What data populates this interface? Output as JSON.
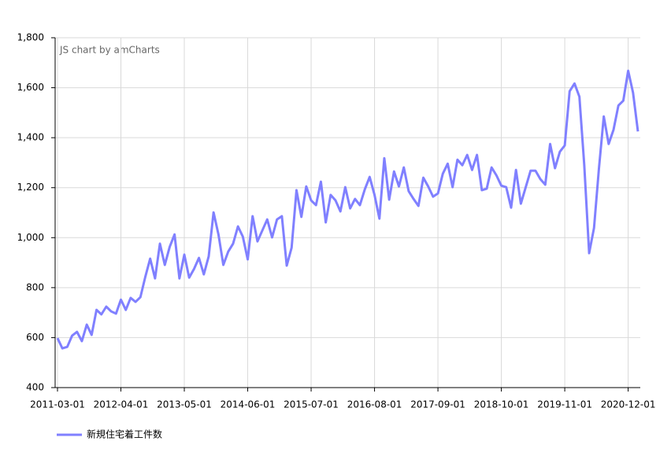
{
  "chart_data": {
    "type": "line",
    "credit": "JS chart by amCharts",
    "x": [
      "2011-03-01",
      "2011-04-01",
      "2011-05-01",
      "2011-06-01",
      "2011-07-01",
      "2011-08-01",
      "2011-09-01",
      "2011-10-01",
      "2011-11-01",
      "2011-12-01",
      "2012-01-01",
      "2012-02-01",
      "2012-03-01",
      "2012-04-01",
      "2012-05-01",
      "2012-06-01",
      "2012-07-01",
      "2012-08-01",
      "2012-09-01",
      "2012-10-01",
      "2012-11-01",
      "2012-12-01",
      "2013-01-01",
      "2013-02-01",
      "2013-03-01",
      "2013-04-01",
      "2013-05-01",
      "2013-06-01",
      "2013-07-01",
      "2013-08-01",
      "2013-09-01",
      "2013-10-01",
      "2013-11-01",
      "2013-12-01",
      "2014-01-01",
      "2014-02-01",
      "2014-03-01",
      "2014-04-01",
      "2014-05-01",
      "2014-06-01",
      "2014-07-01",
      "2014-08-01",
      "2014-09-01",
      "2014-10-01",
      "2014-11-01",
      "2014-12-01",
      "2015-01-01",
      "2015-02-01",
      "2015-03-01",
      "2015-04-01",
      "2015-05-01",
      "2015-06-01",
      "2015-07-01",
      "2015-08-01",
      "2015-09-01",
      "2015-10-01",
      "2015-11-01",
      "2015-12-01",
      "2016-01-01",
      "2016-02-01",
      "2016-03-01",
      "2016-04-01",
      "2016-05-01",
      "2016-06-01",
      "2016-07-01",
      "2016-08-01",
      "2016-09-01",
      "2016-10-01",
      "2016-11-01",
      "2016-12-01",
      "2017-01-01",
      "2017-02-01",
      "2017-03-01",
      "2017-04-01",
      "2017-05-01",
      "2017-06-01",
      "2017-07-01",
      "2017-08-01",
      "2017-09-01",
      "2017-10-01",
      "2017-11-01",
      "2017-12-01",
      "2018-01-01",
      "2018-02-01",
      "2018-03-01",
      "2018-04-01",
      "2018-05-01",
      "2018-06-01",
      "2018-07-01",
      "2018-08-01",
      "2018-09-01",
      "2018-10-01",
      "2018-11-01",
      "2018-12-01",
      "2019-01-01",
      "2019-02-01",
      "2019-03-01",
      "2019-04-01",
      "2019-05-01",
      "2019-06-01",
      "2019-07-01",
      "2019-08-01",
      "2019-09-01",
      "2019-10-01",
      "2019-11-01",
      "2019-12-01",
      "2020-01-01",
      "2020-02-01",
      "2020-03-01",
      "2020-04-01",
      "2020-05-01",
      "2020-06-01",
      "2020-07-01",
      "2020-08-01",
      "2020-09-01",
      "2020-10-01",
      "2020-11-01",
      "2020-12-01",
      "2021-01-01",
      "2021-02-01"
    ],
    "series": [
      {
        "name": "新規住宅着工件数",
        "color": "#8080ff",
        "values": [
          598,
          557,
          563,
          608,
          623,
          586,
          652,
          611,
          711,
          693,
          724,
          705,
          696,
          752,
          711,
          759,
          743,
          762,
          843,
          916,
          837,
          976,
          891,
          963,
          1013,
          837,
          932,
          840,
          875,
          919,
          853,
          925,
          1101,
          1013,
          891,
          944,
          976,
          1045,
          1004,
          913,
          1086,
          985,
          1029,
          1073,
          1001,
          1073,
          1086,
          888,
          960,
          1190,
          1083,
          1205,
          1149,
          1130,
          1224,
          1061,
          1171,
          1149,
          1105,
          1202,
          1117,
          1155,
          1130,
          1193,
          1243,
          1171,
          1076,
          1318,
          1152,
          1265,
          1205,
          1281,
          1186,
          1155,
          1127,
          1240,
          1205,
          1164,
          1177,
          1256,
          1296,
          1202,
          1312,
          1290,
          1331,
          1271,
          1331,
          1190,
          1196,
          1281,
          1249,
          1208,
          1202,
          1120,
          1271,
          1136,
          1202,
          1268,
          1268,
          1234,
          1212,
          1375,
          1278,
          1344,
          1369,
          1586,
          1617,
          1564,
          1290,
          938,
          1039,
          1275,
          1485,
          1375,
          1432,
          1529,
          1548,
          1668,
          1580,
          1425
        ]
      }
    ],
    "xlim": [
      "2011-03-01",
      "2021-02-01"
    ],
    "xticks": [
      "2011-03-01",
      "2012-04-01",
      "2013-05-01",
      "2014-06-01",
      "2015-07-01",
      "2016-08-01",
      "2017-09-01",
      "2018-10-01",
      "2019-11-01",
      "2020-12-01"
    ],
    "ylim": [
      400,
      1800
    ],
    "yticks": [
      400,
      600,
      800,
      {
        "value": 1000,
        "label": "1,000"
      },
      {
        "value": 1200,
        "label": "1,200"
      },
      {
        "value": 1400,
        "label": "1,400"
      },
      {
        "value": 1600,
        "label": "1,600"
      },
      {
        "value": 1800,
        "label": "1,800"
      }
    ],
    "grid": true,
    "legend": "bottom-left"
  }
}
